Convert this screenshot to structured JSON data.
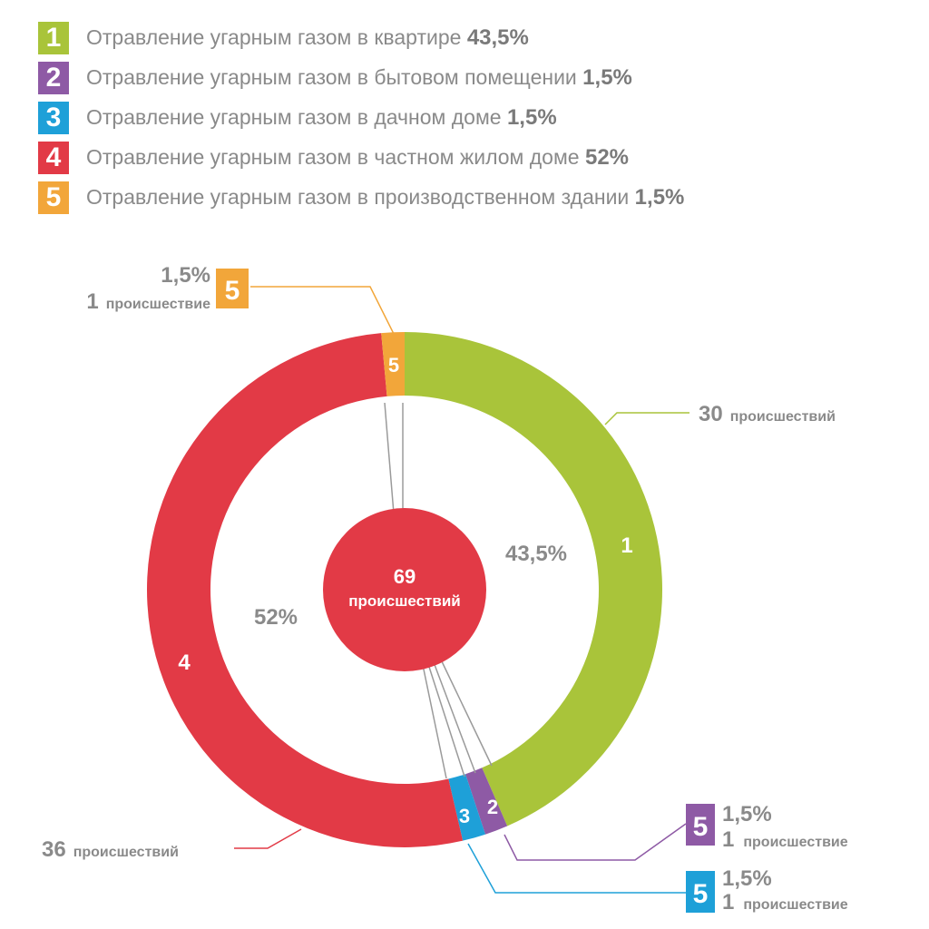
{
  "colors": {
    "c1": "#a9c43a",
    "c2": "#8e5aa5",
    "c3": "#1ea0d8",
    "c4": "#e23a46",
    "c5": "#f2a63a",
    "text_gray": "#8a8a8a"
  },
  "legend": [
    {
      "num": "1",
      "text": "Отравление угарным газом в квартире ",
      "pct": "43,5%"
    },
    {
      "num": "2",
      "text": "Отравление угарным газом в бытовом помещении ",
      "pct": "1,5%"
    },
    {
      "num": "3",
      "text": "Отравление угарным газом в дачном доме ",
      "pct": "1,5%"
    },
    {
      "num": "4",
      "text": "Отравление угарным газом в частном жилом доме ",
      "pct": "52%"
    },
    {
      "num": "5",
      "text": "Отравление угарным газом в производственном здании ",
      "pct": "1,5%"
    }
  ],
  "center": {
    "count": "69",
    "label": "происшествий"
  },
  "callouts": {
    "seg1": {
      "count": "30",
      "label": "происшествий"
    },
    "seg4": {
      "count": "36",
      "label": "происшествий"
    },
    "seg5": {
      "pct": "1,5%",
      "count": "1",
      "label": "происшествие",
      "badge": "5"
    },
    "seg2": {
      "pct": "1,5%",
      "count": "1",
      "label": "происшествие",
      "badge": "5"
    },
    "seg3": {
      "pct": "1,5%",
      "count": "1",
      "label": "происшествие",
      "badge": "5"
    }
  },
  "inner_labels": {
    "seg1_pct": "43,5%",
    "seg4_pct": "52%"
  },
  "chart_data": {
    "type": "pie",
    "variant": "donut",
    "categories": [
      "1",
      "2",
      "3",
      "4",
      "5"
    ],
    "values": [
      30,
      1,
      1,
      36,
      1
    ],
    "percent_labels": [
      "43,5%",
      "1,5%",
      "1,5%",
      "52%",
      "1,5%"
    ],
    "total": 69,
    "legend_position": "top"
  }
}
